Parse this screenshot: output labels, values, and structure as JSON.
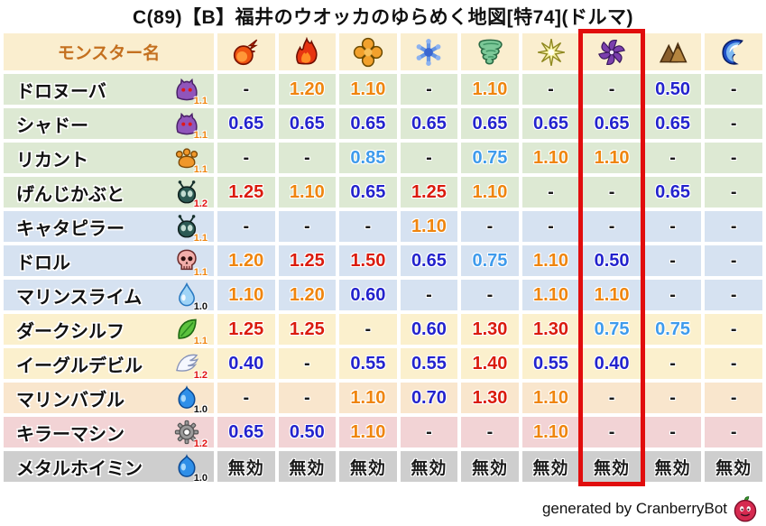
{
  "title": "C(89)【B】福井のウオッカのゆらめく地図[特74](ドルマ)",
  "footer": {
    "text": "generated by CranberryBot",
    "icon": "cranberry-slime-icon"
  },
  "colors": {
    "header_bg": "#faeecf",
    "name_header_text": "#c4701f",
    "highlight": "#e10d0d",
    "row_bg": {
      "green": "#dde9d3",
      "blue": "#d6e2f1",
      "cream": "#fbf0cd",
      "peach": "#f9e6cd",
      "pink": "#f2d3d5",
      "gray": "#cecece"
    },
    "value": {
      "up_strong": "#da1b0d",
      "up": "#ef850e",
      "down_mild": "#3f9bec",
      "down": "#2323cd",
      "none": "#1a1a1a"
    },
    "badge": {
      "orange": "#ef850e",
      "red": "#e01212",
      "black": "#111111"
    }
  },
  "table": {
    "name_header": "モンスター名",
    "columns": [
      {
        "id": "mera",
        "label": "メラ系",
        "icon": "fireball-icon",
        "highlighted": false
      },
      {
        "id": "gira",
        "label": "ギラ系",
        "icon": "flame-icon",
        "highlighted": false
      },
      {
        "id": "io",
        "label": "イオ系",
        "icon": "burst-icon",
        "highlighted": false
      },
      {
        "id": "hyado",
        "label": "ヒャド系",
        "icon": "snowflake-icon",
        "highlighted": false
      },
      {
        "id": "bagi",
        "label": "バギ系",
        "icon": "tornado-icon",
        "highlighted": false
      },
      {
        "id": "dein",
        "label": "デイン系",
        "icon": "starburst-icon",
        "highlighted": false
      },
      {
        "id": "doruma",
        "label": "ドルマ系",
        "icon": "pinwheel-icon",
        "highlighted": true
      },
      {
        "id": "earth",
        "label": "土系",
        "icon": "mountain-icon",
        "highlighted": false
      },
      {
        "id": "water",
        "label": "水系",
        "icon": "wave-icon",
        "highlighted": false
      }
    ],
    "nullify_label": "無効",
    "rows": [
      {
        "name": "ドロヌーバ",
        "icon": "purple-blob-icon",
        "badge": "1.1",
        "badge_tone": "orange",
        "bg": "green",
        "values": [
          "-",
          "1.20",
          "1.10",
          "-",
          "1.10",
          "-",
          "-",
          "0.50",
          "-"
        ]
      },
      {
        "name": "シャドー",
        "icon": "purple-blob-icon",
        "badge": "1.1",
        "badge_tone": "orange",
        "bg": "green",
        "values": [
          "0.65",
          "0.65",
          "0.65",
          "0.65",
          "0.65",
          "0.65",
          "0.65",
          "0.65",
          "-"
        ]
      },
      {
        "name": "リカント",
        "icon": "paw-icon",
        "badge": "1.1",
        "badge_tone": "orange",
        "bg": "green",
        "values": [
          "-",
          "-",
          "0.85",
          "-",
          "0.75",
          "1.10",
          "1.10",
          "-",
          "-"
        ]
      },
      {
        "name": "げんじかぶと",
        "icon": "bug-icon",
        "badge": "1.2",
        "badge_tone": "red",
        "bg": "green",
        "values": [
          "1.25",
          "1.10",
          "0.65",
          "1.25",
          "1.10",
          "-",
          "-",
          "0.65",
          "-"
        ]
      },
      {
        "name": "キャタピラー",
        "icon": "bug-icon",
        "badge": "1.1",
        "badge_tone": "orange",
        "bg": "blue",
        "values": [
          "-",
          "-",
          "-",
          "1.10",
          "-",
          "-",
          "-",
          "-",
          "-"
        ]
      },
      {
        "name": "ドロル",
        "icon": "skull-icon",
        "badge": "1.1",
        "badge_tone": "orange",
        "bg": "blue",
        "values": [
          "1.20",
          "1.25",
          "1.50",
          "0.65",
          "0.75",
          "1.10",
          "0.50",
          "-",
          "-"
        ]
      },
      {
        "name": "マリンスライム",
        "icon": "drop-icon",
        "badge": "1.0",
        "badge_tone": "black",
        "bg": "blue",
        "values": [
          "1.10",
          "1.20",
          "0.60",
          "-",
          "-",
          "1.10",
          "1.10",
          "-",
          "-"
        ]
      },
      {
        "name": "ダークシルフ",
        "icon": "leaf-icon",
        "badge": "1.1",
        "badge_tone": "orange",
        "bg": "cream",
        "values": [
          "1.25",
          "1.25",
          "-",
          "0.60",
          "1.30",
          "1.30",
          "0.75",
          "0.75",
          "-"
        ]
      },
      {
        "name": "イーグルデビル",
        "icon": "wing-icon",
        "badge": "1.2",
        "badge_tone": "red",
        "bg": "cream",
        "values": [
          "0.40",
          "-",
          "0.55",
          "0.55",
          "1.40",
          "0.55",
          "0.40",
          "-",
          "-"
        ]
      },
      {
        "name": "マリンバブル",
        "icon": "slime-icon",
        "badge": "1.0",
        "badge_tone": "black",
        "bg": "peach",
        "values": [
          "-",
          "-",
          "1.10",
          "0.70",
          "1.30",
          "1.10",
          "-",
          "-",
          "-"
        ]
      },
      {
        "name": "キラーマシン",
        "icon": "gear-icon",
        "badge": "1.2",
        "badge_tone": "red",
        "bg": "pink",
        "values": [
          "0.65",
          "0.50",
          "1.10",
          "-",
          "-",
          "1.10",
          "-",
          "-",
          "-"
        ]
      },
      {
        "name": "メタルホイミン",
        "icon": "slime-icon",
        "badge": "1.0",
        "badge_tone": "black",
        "bg": "gray",
        "values": [
          "無効",
          "無効",
          "無効",
          "無効",
          "無効",
          "無効",
          "無効",
          "無効",
          "無効"
        ]
      }
    ]
  }
}
